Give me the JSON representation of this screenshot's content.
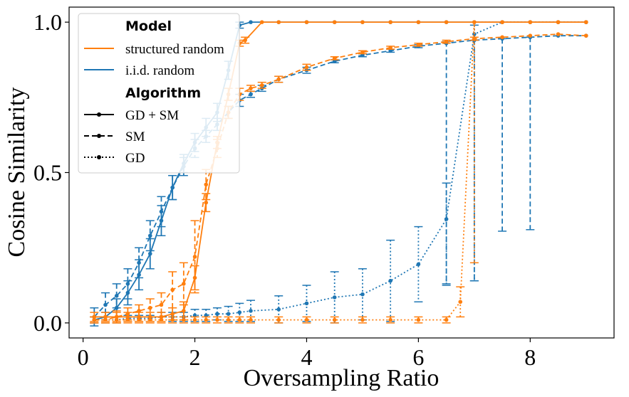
{
  "chart_data": {
    "type": "line",
    "title": "",
    "xlabel": "Oversampling Ratio",
    "ylabel": "Cosine Similarity",
    "xlim": [
      -0.25,
      9.5
    ],
    "ylim": [
      -0.05,
      1.05
    ],
    "x_ticks": [
      "0",
      "2",
      "4",
      "6",
      "8"
    ],
    "x_tick_values": [
      0,
      2,
      4,
      6,
      8
    ],
    "y_ticks": [
      "0.0",
      "0.5",
      "1.0"
    ],
    "y_tick_values": [
      0.0,
      0.5,
      1.0
    ],
    "grid": false,
    "legend": {
      "placement": "top-left",
      "model_heading": "Model",
      "model_entries": [
        {
          "label": "structured random",
          "color": "#ff7f0e"
        },
        {
          "label": "i.i.d. random",
          "color": "#1f77b4"
        }
      ],
      "algorithm_heading": "Algorithm",
      "algorithm_entries": [
        {
          "label": "GD + SM",
          "dash": "solid"
        },
        {
          "label": "SM",
          "dash": "dashed"
        },
        {
          "label": "GD",
          "dash": "dotted"
        }
      ]
    },
    "series": [
      {
        "model": "i.i.d. random",
        "algorithm": "GD + SM",
        "color": "#1f77b4",
        "dash": "solid",
        "x": [
          0.2,
          0.4,
          0.6,
          0.8,
          1.0,
          1.2,
          1.4,
          1.6,
          1.8,
          2.0,
          2.2,
          2.4,
          2.6,
          2.8,
          3.0,
          3.5,
          4.0,
          4.5,
          5.0,
          5.5,
          6.0,
          6.5,
          7.0,
          7.5,
          8.0,
          8.5,
          9.0
        ],
        "y": [
          0.01,
          0.02,
          0.05,
          0.1,
          0.16,
          0.23,
          0.34,
          0.45,
          0.53,
          0.6,
          0.65,
          0.7,
          0.84,
          0.99,
          1.0,
          1.0,
          1.0,
          1.0,
          1.0,
          1.0,
          1.0,
          1.0,
          1.0,
          1.0,
          1.0,
          1.0,
          1.0
        ],
        "err": [
          0.01,
          0.015,
          0.03,
          0.04,
          0.05,
          0.05,
          0.05,
          0.04,
          0.03,
          0.03,
          0.03,
          0.03,
          0.03,
          0.01,
          0,
          0,
          0,
          0,
          0,
          0,
          0,
          0,
          0,
          0,
          0,
          0,
          0
        ]
      },
      {
        "model": "i.i.d. random",
        "algorithm": "SM",
        "color": "#1f77b4",
        "dash": "dashed",
        "x": [
          0.2,
          0.4,
          0.6,
          0.8,
          1.0,
          1.2,
          1.4,
          1.6,
          1.8,
          2.0,
          2.2,
          2.4,
          2.6,
          2.8,
          3.0,
          3.2,
          3.5,
          4.0,
          4.5,
          5.0,
          5.5,
          6.0,
          6.5,
          7.0,
          7.5,
          8.0,
          8.5,
          9.0
        ],
        "y": [
          0.02,
          0.06,
          0.09,
          0.13,
          0.2,
          0.29,
          0.37,
          0.45,
          0.52,
          0.58,
          0.62,
          0.66,
          0.7,
          0.74,
          0.76,
          0.78,
          0.81,
          0.84,
          0.87,
          0.89,
          0.905,
          0.92,
          0.93,
          0.94,
          0.945,
          0.95,
          0.955,
          0.955
        ],
        "err": [
          0.03,
          0.04,
          0.04,
          0.05,
          0.05,
          0.05,
          0.05,
          0.04,
          0.03,
          0.03,
          0.02,
          0.02,
          0.02,
          0.02,
          0.01,
          0.01,
          0.01,
          0.01,
          0.005,
          0.005,
          0.005,
          0.005,
          0.005,
          0,
          0,
          0,
          0,
          0
        ],
        "err_low": [
          0.03,
          0.04,
          0.04,
          0.05,
          0.05,
          0.05,
          0.05,
          0.04,
          0.03,
          0.03,
          0.02,
          0.02,
          0.02,
          0.02,
          0.01,
          0.01,
          0.01,
          0.01,
          0.005,
          0.005,
          0.005,
          0.005,
          0.8,
          0.8,
          0.64,
          0.64,
          0,
          0
        ]
      },
      {
        "model": "i.i.d. random",
        "algorithm": "GD",
        "color": "#1f77b4",
        "dash": "dotted",
        "x": [
          0.2,
          0.4,
          0.6,
          0.8,
          1.0,
          1.2,
          1.4,
          1.6,
          1.8,
          2.0,
          2.2,
          2.4,
          2.6,
          2.8,
          3.0,
          3.5,
          4.0,
          4.5,
          5.0,
          5.5,
          6.0,
          6.5,
          7.0,
          7.5,
          8.0,
          8.5,
          9.0
        ],
        "y": [
          0.01,
          0.01,
          0.01,
          0.015,
          0.015,
          0.015,
          0.02,
          0.02,
          0.02,
          0.025,
          0.025,
          0.03,
          0.03,
          0.035,
          0.04,
          0.045,
          0.065,
          0.085,
          0.095,
          0.14,
          0.195,
          0.345,
          0.96,
          1.0,
          1.0,
          1.0,
          1.0
        ],
        "err": [
          0.01,
          0.01,
          0.01,
          0.01,
          0.01,
          0.01,
          0.015,
          0.015,
          0.015,
          0.02,
          0.02,
          0.02,
          0.025,
          0.03,
          0.035,
          0.045,
          0.06,
          0.085,
          0.085,
          0.135,
          0.125,
          0.12,
          0.03,
          0,
          0,
          0,
          0
        ],
        "err_low": [
          0.01,
          0.01,
          0.01,
          0.01,
          0.01,
          0.01,
          0.015,
          0.015,
          0.015,
          0.02,
          0.02,
          0.02,
          0.025,
          0.03,
          0.035,
          0.045,
          0.06,
          0.085,
          0.085,
          0.135,
          0.125,
          0.22,
          0.82,
          0,
          0,
          0,
          0
        ]
      },
      {
        "model": "structured random",
        "algorithm": "GD + SM",
        "color": "#ff7f0e",
        "dash": "solid",
        "x": [
          0.2,
          0.4,
          0.6,
          0.8,
          1.0,
          1.2,
          1.4,
          1.6,
          1.8,
          2.0,
          2.2,
          2.4,
          2.6,
          2.8,
          2.9,
          3.2,
          3.5,
          4.0,
          4.5,
          5.0,
          5.5,
          6.0,
          6.5,
          7.0,
          7.5,
          8.0,
          8.5,
          9.0
        ],
        "y": [
          0.02,
          0.02,
          0.02,
          0.02,
          0.02,
          0.02,
          0.02,
          0.03,
          0.04,
          0.15,
          0.4,
          0.6,
          0.76,
          0.93,
          0.94,
          1.0,
          1.0,
          1.0,
          1.0,
          1.0,
          1.0,
          1.0,
          1.0,
          1.0,
          1.0,
          1.0,
          1.0,
          1.0
        ],
        "err": [
          0.015,
          0.015,
          0.015,
          0.015,
          0.015,
          0.015,
          0.015,
          0.02,
          0.03,
          0.04,
          0.03,
          0.02,
          0.02,
          0.01,
          0.01,
          0,
          0,
          0,
          0,
          0,
          0,
          0,
          0,
          0,
          0,
          0,
          0,
          0
        ]
      },
      {
        "model": "structured random",
        "algorithm": "SM",
        "color": "#ff7f0e",
        "dash": "dashed",
        "x": [
          0.2,
          0.4,
          0.6,
          0.8,
          1.0,
          1.2,
          1.4,
          1.6,
          1.8,
          2.0,
          2.2,
          2.4,
          2.6,
          2.8,
          3.0,
          3.2,
          3.5,
          4.0,
          4.5,
          5.0,
          5.5,
          6.0,
          6.5,
          7.0,
          7.5,
          8.0,
          8.5,
          9.0
        ],
        "y": [
          0.01,
          0.01,
          0.02,
          0.03,
          0.04,
          0.05,
          0.06,
          0.11,
          0.13,
          0.22,
          0.46,
          0.58,
          0.7,
          0.76,
          0.78,
          0.79,
          0.81,
          0.85,
          0.88,
          0.9,
          0.915,
          0.925,
          0.935,
          0.945,
          0.95,
          0.955,
          0.96,
          0.955
        ],
        "err": [
          0.01,
          0.01,
          0.02,
          0.02,
          0.02,
          0.03,
          0.04,
          0.06,
          0.07,
          0.12,
          0.05,
          0.03,
          0.02,
          0.02,
          0.01,
          0.01,
          0.01,
          0.01,
          0.005,
          0.005,
          0.005,
          0.005,
          0.005,
          0.005,
          0,
          0,
          0,
          0
        ]
      },
      {
        "model": "structured random",
        "algorithm": "GD",
        "color": "#ff7f0e",
        "dash": "dotted",
        "x": [
          0.2,
          0.4,
          0.6,
          0.8,
          1.0,
          1.2,
          1.4,
          1.6,
          1.8,
          2.0,
          2.2,
          2.4,
          2.6,
          2.8,
          3.0,
          3.5,
          4.0,
          4.5,
          5.0,
          5.5,
          6.0,
          6.5,
          6.75,
          7.0,
          7.5,
          8.0,
          8.5,
          9.0
        ],
        "y": [
          0.01,
          0.01,
          0.01,
          0.01,
          0.01,
          0.01,
          0.01,
          0.01,
          0.01,
          0.01,
          0.01,
          0.01,
          0.01,
          0.01,
          0.01,
          0.01,
          0.01,
          0.01,
          0.01,
          0.01,
          0.01,
          0.01,
          0.07,
          1.0,
          1.0,
          1.0,
          1.0,
          1.0
        ],
        "err": [
          0.01,
          0.01,
          0.01,
          0.01,
          0.01,
          0.01,
          0.01,
          0.01,
          0.01,
          0.01,
          0.01,
          0.01,
          0.01,
          0.01,
          0.01,
          0.01,
          0.01,
          0.01,
          0.01,
          0.01,
          0.01,
          0.01,
          0.05,
          0,
          0,
          0,
          0,
          0
        ],
        "err_low": [
          0.01,
          0.01,
          0.01,
          0.01,
          0.01,
          0.01,
          0.01,
          0.01,
          0.01,
          0.01,
          0.01,
          0.01,
          0.01,
          0.01,
          0.01,
          0.01,
          0.01,
          0.01,
          0.01,
          0.01,
          0.01,
          0.01,
          0.05,
          0.8,
          0,
          0,
          0,
          0
        ]
      }
    ]
  }
}
